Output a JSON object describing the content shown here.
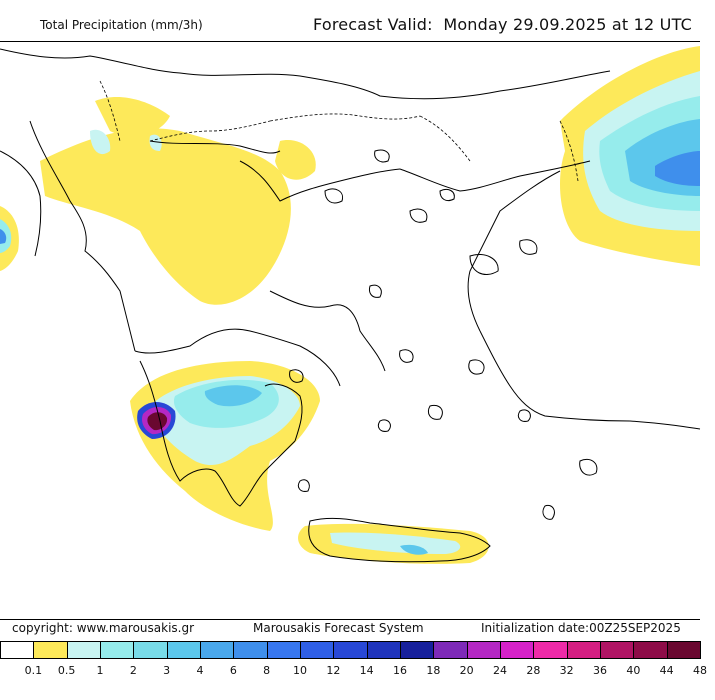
{
  "header": {
    "title_left": "Total Precipitation (mm/3h)",
    "forecast_label": "Forecast Valid:",
    "forecast_value": "Monday 29.09.2025 at 12 UTC"
  },
  "footer": {
    "copyright": "copyright: www.marousakis.gr",
    "system": "Marousakis Forecast System",
    "initialization": "Initialization date:00Z25SEP2025"
  },
  "legend": {
    "unit": "mm/3h",
    "thresholds": [
      "0.1",
      "0.5",
      "1",
      "2",
      "3",
      "4",
      "6",
      "8",
      "10",
      "12",
      "14",
      "16",
      "18",
      "20",
      "24",
      "28",
      "32",
      "36",
      "40",
      "44",
      "48"
    ],
    "colors": [
      "#ffffff",
      "#fde95a",
      "#c8f4f2",
      "#96ecec",
      "#78dbe8",
      "#5cc7ec",
      "#4aa8ec",
      "#3f8fec",
      "#3877f0",
      "#2f5fe6",
      "#2848d6",
      "#1f34bc",
      "#17209c",
      "#7e2ab8",
      "#b428c4",
      "#d622c8",
      "#ee2aa8",
      "#d41e82",
      "#b01464",
      "#8e0c48",
      "#6a0830"
    ]
  },
  "map": {
    "region": "Greece and surrounding region",
    "peak_cell": "Western Peloponnese",
    "colors": {
      "light": "#fde95a",
      "pale": "#c8f4f2",
      "cyan": "#96ecec",
      "mid": "#5cc7ec",
      "blue": "#3f8fec",
      "deep": "#2848d6",
      "purple": "#b428c4",
      "peak": "#6a0830"
    }
  }
}
